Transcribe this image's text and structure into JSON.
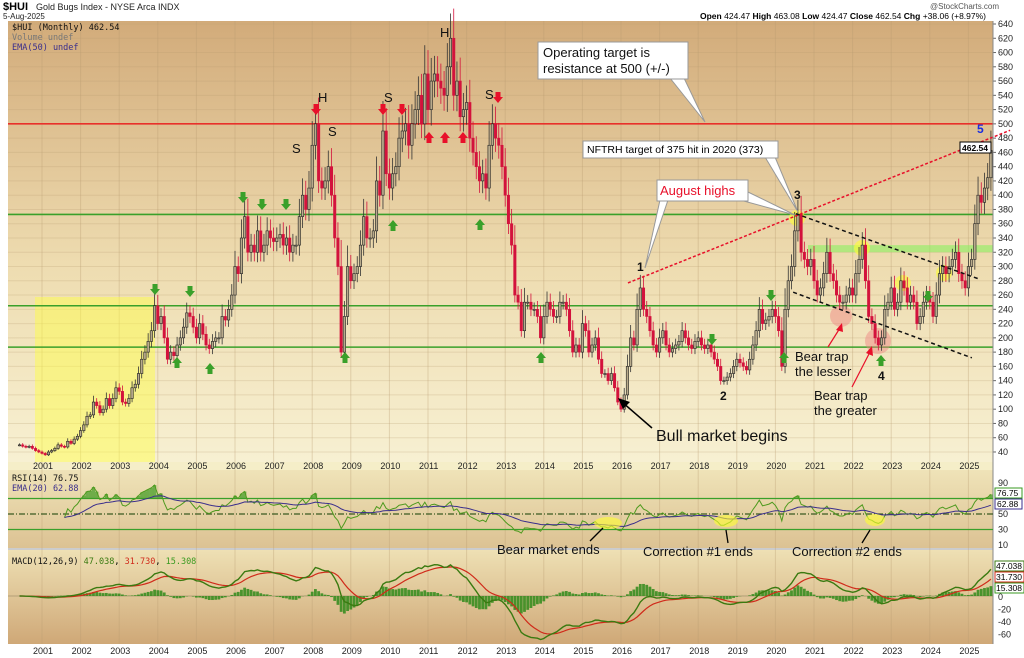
{
  "header": {
    "symbol": "$HUI",
    "name": "Gold Bugs Index - NYSE Arca INDX",
    "date": "5-Aug-2025",
    "copyright": "@StockCharts.com",
    "ohlc": {
      "open_label": "Open",
      "open": "424.47",
      "high_label": "High",
      "high": "463.08",
      "low_label": "Low",
      "low": "424.47",
      "close_label": "Close",
      "close": "462.54",
      "chg_label": "Chg",
      "chg": "+38.06 (+8.97%)"
    }
  },
  "legend": {
    "price": "$HUI (Monthly) 462.54",
    "volume": "Volume undef",
    "ema": "EMA(50) undef",
    "rsi": "RSI(14) 76.75",
    "rsi_ema": "EMA(20) 62.88",
    "macd_name": "MACD(12,26,9)",
    "macd": "47.038",
    "signal": "31.730",
    "hist": "15.308"
  },
  "axis_labels": {
    "last_price": "462.54",
    "rsi_last": "76.75",
    "rsi_ema_last": "62.88",
    "macd_last": "47.038",
    "signal_last": "31.730",
    "hist_last": "15.308"
  },
  "annotations": {
    "operating_target": [
      "Operating target is",
      "resistance at 500 (+/-)"
    ],
    "nftrh_target": "NFTRH target of 375 hit in 2020 (373)",
    "august_highs": "August highs",
    "bull_market": "Bull market begins",
    "bear_trap_lesser": [
      "Bear trap",
      "the lesser"
    ],
    "bear_trap_greater": [
      "Bear trap",
      "the greater"
    ],
    "waves": [
      "1",
      "2",
      "3",
      "4",
      "5"
    ],
    "hs": [
      "S",
      "H",
      "S",
      "S",
      "H",
      "S"
    ],
    "bear_market_ends": "Bear market ends",
    "correction1_ends": "Correction #1 ends",
    "correction2_ends": "Correction #2 ends"
  },
  "colors": {
    "up": "#b9ab8c",
    "down": "#d3123c",
    "resistance": "#e8302a",
    "support": "#3aa02a",
    "rsi": "#4e9a1e",
    "rsi_ema": "#3a2e8c",
    "macd": "#3a7a10",
    "signal": "#d02a1a",
    "wave5": "#1a2ee0"
  },
  "chart_data": {
    "type": "candlestick",
    "title": "$HUI Gold Bugs Index - NYSE Arca INDX",
    "period": "Monthly",
    "x_ticks": [
      "2001",
      "2002",
      "2003",
      "2004",
      "2005",
      "2006",
      "2007",
      "2008",
      "2009",
      "2010",
      "2011",
      "2012",
      "2013",
      "2014",
      "2015",
      "2016",
      "2017",
      "2018",
      "2019",
      "2020",
      "2021",
      "2022",
      "2023",
      "2024",
      "2025"
    ],
    "y_ticks": [
      40,
      60,
      80,
      100,
      120,
      140,
      160,
      180,
      200,
      220,
      240,
      260,
      280,
      300,
      320,
      340,
      360,
      380,
      400,
      420,
      440,
      460,
      480,
      500,
      520,
      540,
      560,
      580,
      600,
      620,
      640
    ],
    "ylim": [
      30,
      645
    ],
    "rsi_ticks": [
      90,
      50,
      30,
      10
    ],
    "macd_ticks": [
      0,
      -20,
      -40,
      -60
    ],
    "monthly_closes": {
      "2000": [
        50,
        48,
        47,
        48,
        45,
        42,
        40
      ],
      "2001": [
        38,
        36,
        40,
        42,
        45,
        50,
        48,
        47,
        55,
        52,
        58,
        62
      ],
      "2002": [
        70,
        78,
        90,
        92,
        110,
        105,
        95,
        100,
        115,
        105,
        115,
        130
      ],
      "2003": [
        125,
        110,
        108,
        115,
        130,
        135,
        150,
        170,
        180,
        195,
        210,
        245
      ],
      "2004": [
        220,
        230,
        200,
        170,
        180,
        175,
        190,
        200,
        215,
        235,
        230,
        215
      ],
      "2005": [
        200,
        220,
        205,
        190,
        185,
        195,
        200,
        200,
        230,
        225,
        240,
        260
      ],
      "2006": [
        300,
        290,
        340,
        370,
        320,
        330,
        320,
        350,
        320,
        330,
        350,
        340
      ],
      "2007": [
        335,
        340,
        345,
        330,
        340,
        320,
        330,
        330,
        370,
        400,
        380,
        410
      ],
      "2008": [
        470,
        500,
        420,
        410,
        420,
        440,
        400,
        340,
        300,
        180,
        230,
        300
      ],
      "2009": [
        280,
        290,
        300,
        330,
        370,
        340,
        340,
        350,
        420,
        400,
        490,
        430
      ],
      "2010": [
        410,
        430,
        440,
        480,
        490,
        500,
        470,
        500,
        520,
        540,
        500,
        570
      ],
      "2011": [
        520,
        560,
        570,
        560,
        550,
        540,
        580,
        620,
        540,
        560,
        510,
        520
      ],
      "2012": [
        530,
        480,
        460,
        440,
        420,
        430,
        410,
        470,
        500,
        480,
        470,
        440
      ],
      "2013": [
        400,
        360,
        330,
        260,
        250,
        210,
        250,
        250,
        240,
        240,
        230,
        200
      ],
      "2014": [
        230,
        250,
        240,
        230,
        230,
        250,
        250,
        240,
        210,
        180,
        190,
        180
      ],
      "2015": [
        220,
        210,
        180,
        190,
        200,
        170,
        150,
        150,
        140,
        150,
        130,
        110
      ],
      "2016": [
        100,
        120,
        160,
        200,
        190,
        240,
        270,
        240,
        230,
        210,
        190,
        180
      ],
      "2017": [
        200,
        210,
        190,
        180,
        185,
        190,
        195,
        210,
        200,
        190,
        185,
        195
      ],
      "2018": [
        200,
        190,
        185,
        190,
        180,
        170,
        160,
        140,
        140,
        145,
        150,
        160
      ],
      "2019": [
        170,
        165,
        160,
        155,
        170,
        190,
        210,
        240,
        220,
        225,
        230,
        240
      ],
      "2020": [
        230,
        210,
        160,
        240,
        280,
        300,
        350,
        373,
        320,
        310,
        300,
        310
      ],
      "2021": [
        280,
        260,
        270,
        290,
        320,
        290,
        280,
        260,
        250,
        250,
        260,
        270
      ],
      "2022": [
        260,
        290,
        310,
        330,
        280,
        230,
        220,
        200,
        190,
        200,
        240,
        250
      ],
      "2023": [
        270,
        240,
        250,
        280,
        270,
        250,
        260,
        250,
        220,
        230,
        250,
        260
      ],
      "2024": [
        250,
        230,
        260,
        290,
        300,
        290,
        300,
        310,
        320,
        290,
        280,
        270
      ],
      "2025": [
        300,
        310,
        360,
        400,
        390,
        410,
        424.47,
        462.54
      ]
    },
    "horizontal_levels": [
      {
        "value": 500,
        "kind": "resistance"
      },
      {
        "value": 373,
        "kind": "support"
      },
      {
        "value": 245,
        "kind": "support"
      },
      {
        "value": 187,
        "kind": "support"
      }
    ],
    "zone": {
      "from": 320,
      "to": 330
    },
    "trendlines": [
      {
        "style": "red-dotted",
        "from": [
          2016.18,
          277
        ],
        "to": [
          2026.08,
          491
        ]
      },
      {
        "style": "black-dashed",
        "from": [
          2020.53,
          374
        ],
        "to": [
          2025.25,
          283
        ]
      },
      {
        "style": "black-dashed",
        "from": [
          2020.46,
          264
        ],
        "to": [
          2025.09,
          172
        ]
      }
    ],
    "rsi_levels": [
      70,
      50,
      30
    ]
  }
}
